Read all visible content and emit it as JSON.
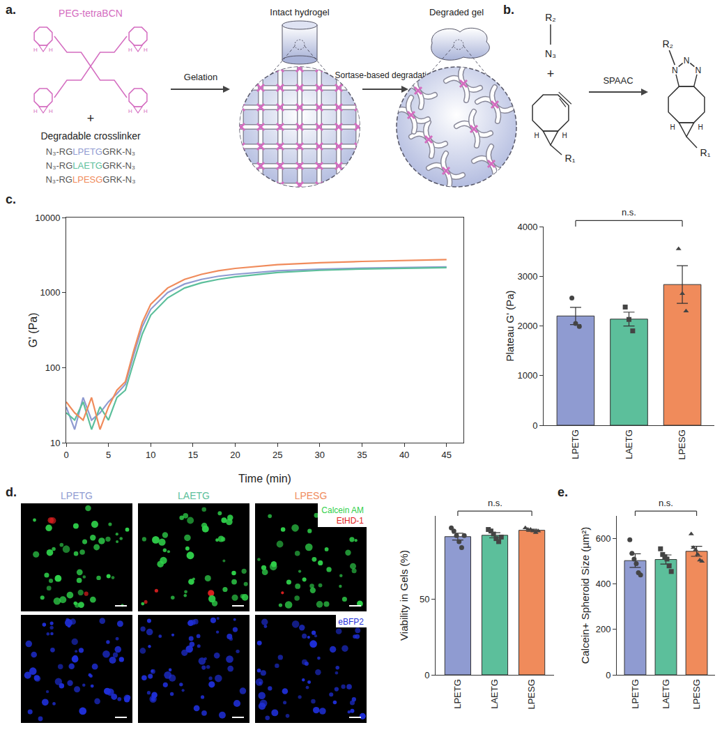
{
  "panels": {
    "a": {
      "label": "a.",
      "polymer": "PEG-tetraBCN",
      "plus": "+",
      "atom": "H",
      "crosslinker_title": "Degradable crosslinker",
      "crosslinkers": [
        {
          "prefix": "N₃-RG",
          "motif": "LPETG",
          "suffix": "GRK-N₃",
          "color": "#8f9bd1"
        },
        {
          "prefix": "N₃-RG",
          "motif": "LAETG",
          "suffix": "GRK-N₃",
          "color": "#5cbf9b"
        },
        {
          "prefix": "N₃-RG",
          "motif": "LPESG",
          "suffix": "GRK-N₃",
          "color": "#f08b5b"
        }
      ],
      "steps": [
        "Gelation",
        "Sortase-based degradation"
      ],
      "states": [
        "Intact hydrogel",
        "Degraded gel"
      ]
    },
    "b": {
      "label": "b.",
      "r1": "R₁",
      "r2": "R₂",
      "azide": "N₃",
      "plus": "+",
      "reaction": "SPAAC",
      "atoms": [
        "N",
        "H"
      ]
    },
    "c": {
      "label": "c."
    },
    "d": {
      "label": "d.",
      "columns": [
        {
          "text": "LPETG",
          "color": "#8f9bd1"
        },
        {
          "text": "LAETG",
          "color": "#5cbf9b"
        },
        {
          "text": "LPESG",
          "color": "#f08b5b"
        }
      ],
      "stains": [
        {
          "text": "Calcein AM",
          "color": "#2fd04a"
        },
        {
          "text": "EtHD-1",
          "color": "#e02020"
        }
      ],
      "reporter": {
        "text": "eBFP2",
        "color": "#1f2fd8"
      }
    },
    "e": {
      "label": "e."
    }
  },
  "chart_data": [
    {
      "type": "line",
      "x_label": "Time (min)",
      "y_label": "G' (Pa)",
      "log": "y",
      "x": [
        0,
        1,
        2,
        3,
        4,
        5,
        6,
        7,
        8,
        9,
        10,
        12,
        14,
        16,
        18,
        20,
        25,
        30,
        35,
        40,
        45
      ],
      "series": [
        {
          "color": "#8f9bd1",
          "values": [
            30,
            15,
            40,
            20,
            25,
            35,
            45,
            60,
            150,
            350,
            600,
            1000,
            1300,
            1500,
            1650,
            1750,
            1950,
            2050,
            2120,
            2170,
            2200
          ]
        },
        {
          "color": "#5cbf9b",
          "values": [
            25,
            20,
            35,
            15,
            30,
            20,
            40,
            50,
            120,
            280,
            500,
            850,
            1150,
            1350,
            1500,
            1620,
            1850,
            1980,
            2060,
            2110,
            2150
          ]
        },
        {
          "color": "#f08b5b",
          "values": [
            35,
            25,
            20,
            40,
            15,
            30,
            50,
            65,
            170,
            400,
            700,
            1150,
            1500,
            1750,
            1950,
            2100,
            2350,
            2500,
            2600,
            2680,
            2750
          ]
        }
      ],
      "xlim": [
        0,
        47
      ],
      "xticks": [
        0,
        5,
        10,
        15,
        20,
        25,
        30,
        35,
        40,
        45
      ],
      "ylim": [
        10,
        10000
      ],
      "yticks": [
        10,
        100,
        1000,
        10000
      ]
    },
    {
      "type": "bar",
      "y_label": "Plateau G' (Pa)",
      "categories": [
        "LPETG",
        "LAETG",
        "LPESG"
      ],
      "values": [
        2200,
        2137,
        2833
      ],
      "errors": [
        175,
        140,
        380
      ],
      "points": [
        [
          2560,
          2050,
          1990
        ],
        [
          2380,
          2130,
          1900
        ],
        [
          3550,
          2650,
          2300
        ]
      ],
      "colors": [
        "#8f9bd1",
        "#5cbf9b",
        "#f08b5b"
      ],
      "ylim": [
        0,
        4000
      ],
      "yticks": [
        0,
        1000,
        2000,
        3000,
        4000
      ],
      "annotations": [
        "n.s."
      ]
    },
    {
      "type": "bar",
      "y_label": "Viability in Gels (%)",
      "categories": [
        "LPETG",
        "LAETG",
        "LPESG"
      ],
      "values": [
        91.3,
        92.2,
        95.5
      ],
      "errors": [
        2.2,
        1.7,
        0.7
      ],
      "points": [
        [
          97,
          95,
          92,
          88,
          84,
          92
        ],
        [
          96,
          95,
          93,
          90,
          88,
          91
        ],
        [
          97,
          96,
          96,
          95,
          94,
          95
        ]
      ],
      "colors": [
        "#8f9bd1",
        "#5cbf9b",
        "#f08b5b"
      ],
      "ylim": [
        0,
        105
      ],
      "yticks": [
        0,
        50
      ],
      "annotations": [
        "n.s."
      ]
    },
    {
      "type": "bar",
      "y_label": "Calcein+ Spheroid Size (µm²)",
      "categories": [
        "LPETG",
        "LAETG",
        "LPESG"
      ],
      "values": [
        503,
        508,
        544
      ],
      "errors": [
        30,
        20,
        22
      ],
      "points": [
        [
          595,
          535,
          510,
          490,
          450,
          440
        ],
        [
          555,
          530,
          520,
          510,
          480,
          455
        ],
        [
          620,
          560,
          550,
          530,
          505,
          500
        ]
      ],
      "colors": [
        "#8f9bd1",
        "#5cbf9b",
        "#f08b5b"
      ],
      "ylim": [
        0,
        700
      ],
      "yticks": [
        0,
        200,
        400,
        600
      ],
      "annotations": [
        "n.s."
      ]
    }
  ]
}
